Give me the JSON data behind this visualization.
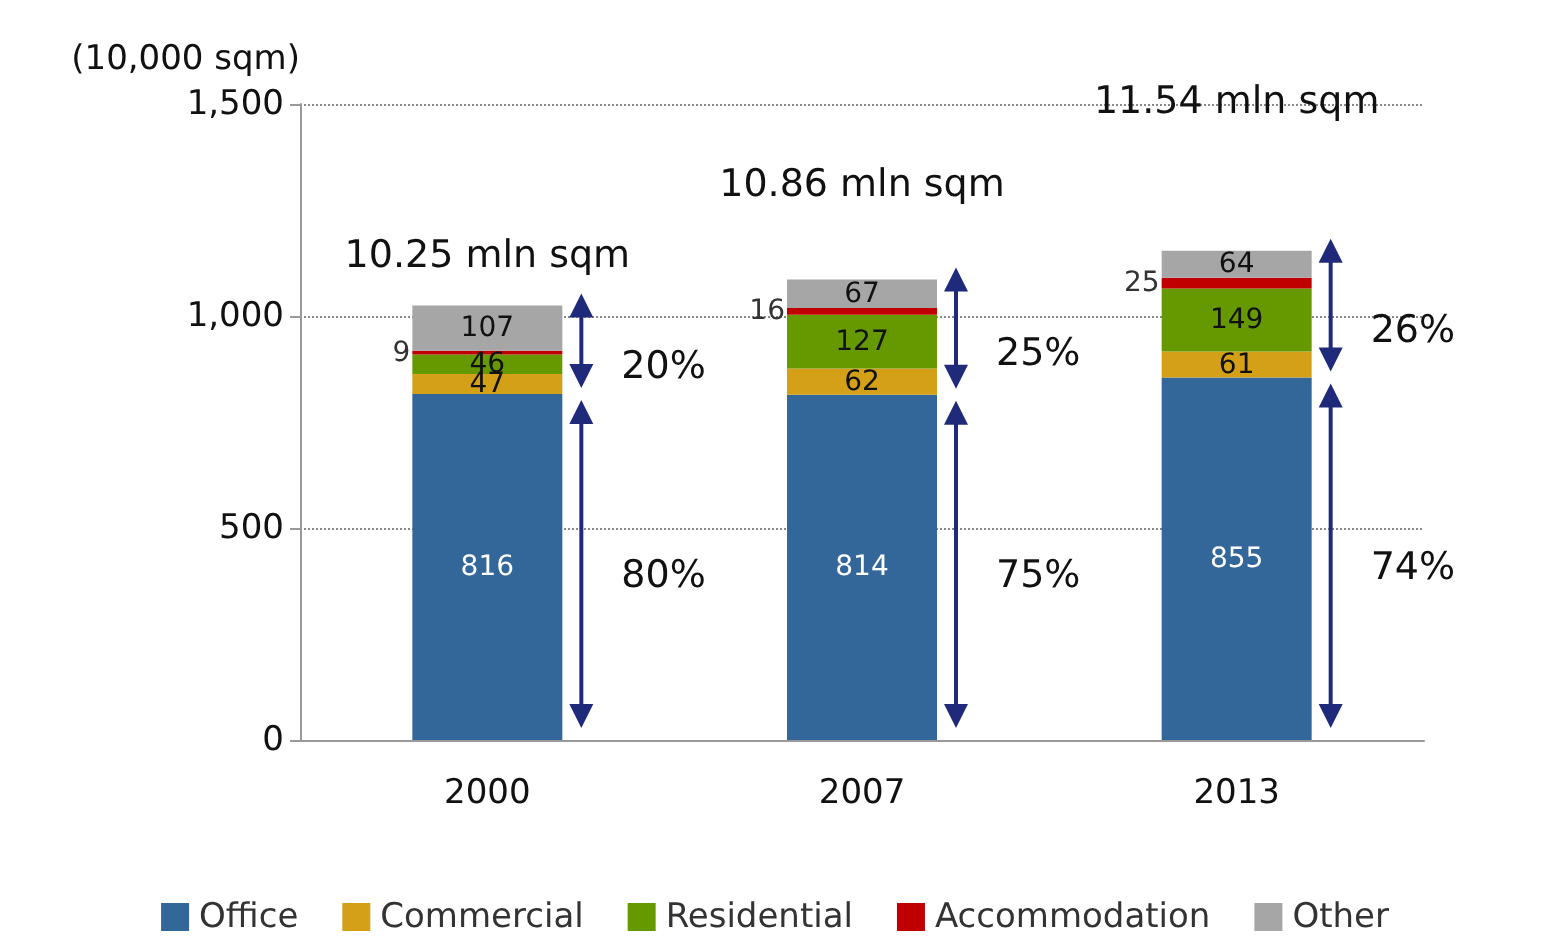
{
  "chart_data": {
    "type": "bar",
    "stacked": true,
    "ylabel": "(10,000 sqm)",
    "categories": [
      "2000",
      "2007",
      "2013"
    ],
    "series": [
      {
        "name": "Office",
        "color": "#336699",
        "values": [
          816,
          814,
          855
        ]
      },
      {
        "name": "Commercial",
        "color": "#d4a017",
        "values": [
          47,
          62,
          61
        ]
      },
      {
        "name": "Residential",
        "color": "#669900",
        "values": [
          46,
          127,
          149
        ]
      },
      {
        "name": "Accommodation",
        "color": "#c00000",
        "values": [
          9,
          16,
          25
        ]
      },
      {
        "name": "Other",
        "color": "#a6a6a6",
        "values": [
          107,
          67,
          64
        ]
      }
    ],
    "ylim": [
      0,
      1500
    ],
    "yticks": [
      0,
      {
        "value": 500,
        "label": "500"
      },
      {
        "value": 1000,
        "label": "1,000"
      },
      {
        "value": 1500,
        "label": "1,500"
      }
    ],
    "grid": "y",
    "legend": "bottom",
    "data_labels": true,
    "annotations": [
      "10.25 mln sqm",
      "10.86 mln sqm",
      "11.54 mln sqm",
      "80%",
      "20%",
      "75%",
      "25%",
      "74%",
      "26%"
    ]
  }
}
